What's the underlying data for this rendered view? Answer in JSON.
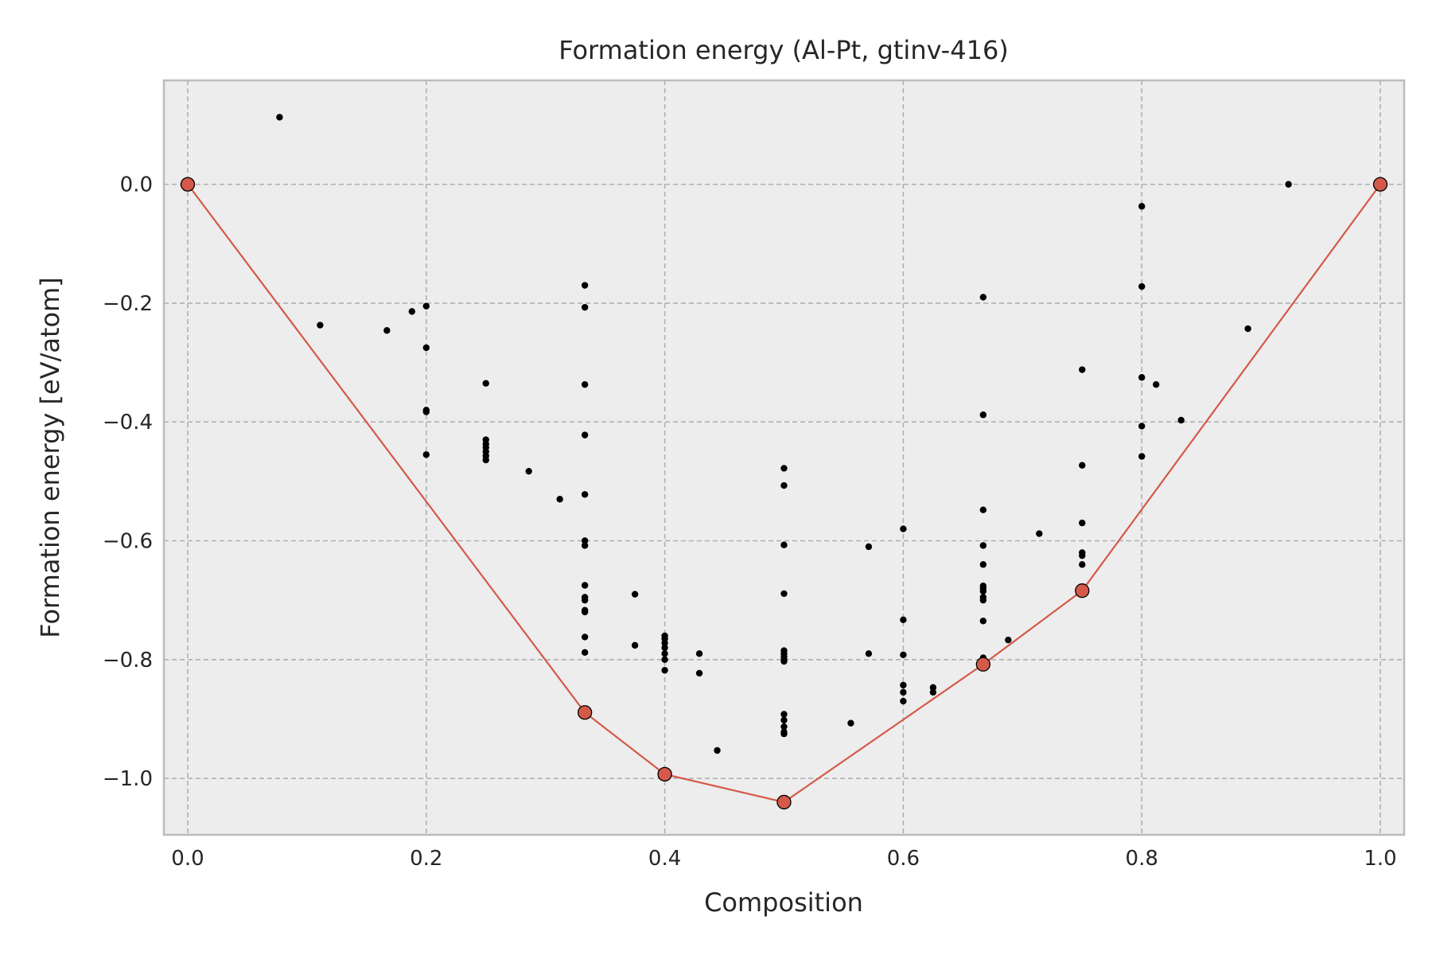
{
  "chart_data": {
    "type": "scatter",
    "title": "Formation energy (Al-Pt, gtinv-416)",
    "xlabel": "Composition",
    "ylabel": "Formation energy [eV/atom]",
    "xlim": [
      -0.02,
      1.02
    ],
    "ylim": [
      -1.095,
      0.175
    ],
    "xticks": [
      0.0,
      0.2,
      0.4,
      0.6,
      0.8,
      1.0
    ],
    "xtick_labels": [
      "0.0",
      "0.2",
      "0.4",
      "0.6",
      "0.8",
      "1.0"
    ],
    "yticks": [
      0.0,
      -0.2,
      -0.4,
      -0.6,
      -0.8,
      -1.0
    ],
    "ytick_labels": [
      "0.0",
      "−0.2",
      "−0.4",
      "−0.6",
      "−0.8",
      "−1.0"
    ],
    "grid": true,
    "colors": {
      "background": "#ededed",
      "grid": "#b0b0b0",
      "frame": "#bcbcbc",
      "hull": "#d4594a",
      "points": "#000000",
      "text": "#262626"
    },
    "series": [
      {
        "name": "structures",
        "marker": "small-dot",
        "points": [
          [
            0.077,
            0.113
          ],
          [
            0.111,
            -0.237
          ],
          [
            0.167,
            -0.246
          ],
          [
            0.188,
            -0.214
          ],
          [
            0.2,
            -0.205
          ],
          [
            0.2,
            -0.275
          ],
          [
            0.2,
            -0.38
          ],
          [
            0.2,
            -0.383
          ],
          [
            0.2,
            -0.455
          ],
          [
            0.25,
            -0.335
          ],
          [
            0.25,
            -0.43
          ],
          [
            0.25,
            -0.437
          ],
          [
            0.25,
            -0.443
          ],
          [
            0.25,
            -0.45
          ],
          [
            0.25,
            -0.457
          ],
          [
            0.25,
            -0.464
          ],
          [
            0.286,
            -0.483
          ],
          [
            0.312,
            -0.53
          ],
          [
            0.333,
            -0.17
          ],
          [
            0.333,
            -0.207
          ],
          [
            0.333,
            -0.337
          ],
          [
            0.333,
            -0.422
          ],
          [
            0.333,
            -0.522
          ],
          [
            0.333,
            -0.6
          ],
          [
            0.333,
            -0.608
          ],
          [
            0.333,
            -0.675
          ],
          [
            0.333,
            -0.695
          ],
          [
            0.333,
            -0.7
          ],
          [
            0.333,
            -0.717
          ],
          [
            0.333,
            -0.72
          ],
          [
            0.333,
            -0.762
          ],
          [
            0.333,
            -0.788
          ],
          [
            0.375,
            -0.69
          ],
          [
            0.375,
            -0.776
          ],
          [
            0.4,
            -0.76
          ],
          [
            0.4,
            -0.765
          ],
          [
            0.4,
            -0.772
          ],
          [
            0.4,
            -0.78
          ],
          [
            0.4,
            -0.79
          ],
          [
            0.4,
            -0.8
          ],
          [
            0.4,
            -0.818
          ],
          [
            0.429,
            -0.79
          ],
          [
            0.429,
            -0.823
          ],
          [
            0.444,
            -0.953
          ],
          [
            0.5,
            -0.478
          ],
          [
            0.5,
            -0.507
          ],
          [
            0.5,
            -0.607
          ],
          [
            0.5,
            -0.689
          ],
          [
            0.5,
            -0.785
          ],
          [
            0.5,
            -0.79
          ],
          [
            0.5,
            -0.795
          ],
          [
            0.5,
            -0.8
          ],
          [
            0.5,
            -0.803
          ],
          [
            0.5,
            -0.892
          ],
          [
            0.5,
            -0.902
          ],
          [
            0.5,
            -0.913
          ],
          [
            0.5,
            -0.922
          ],
          [
            0.5,
            -0.925
          ],
          [
            0.556,
            -0.907
          ],
          [
            0.571,
            -0.61
          ],
          [
            0.571,
            -0.79
          ],
          [
            0.6,
            -0.58
          ],
          [
            0.6,
            -0.733
          ],
          [
            0.6,
            -0.792
          ],
          [
            0.6,
            -0.843
          ],
          [
            0.6,
            -0.855
          ],
          [
            0.6,
            -0.87
          ],
          [
            0.625,
            -0.847
          ],
          [
            0.625,
            -0.855
          ],
          [
            0.667,
            -0.19
          ],
          [
            0.667,
            -0.388
          ],
          [
            0.667,
            -0.548
          ],
          [
            0.667,
            -0.608
          ],
          [
            0.667,
            -0.64
          ],
          [
            0.667,
            -0.676
          ],
          [
            0.667,
            -0.68
          ],
          [
            0.667,
            -0.685
          ],
          [
            0.667,
            -0.695
          ],
          [
            0.667,
            -0.7
          ],
          [
            0.667,
            -0.735
          ],
          [
            0.667,
            -0.797
          ],
          [
            0.688,
            -0.767
          ],
          [
            0.714,
            -0.588
          ],
          [
            0.75,
            -0.312
          ],
          [
            0.75,
            -0.473
          ],
          [
            0.75,
            -0.57
          ],
          [
            0.75,
            -0.62
          ],
          [
            0.75,
            -0.625
          ],
          [
            0.75,
            -0.64
          ],
          [
            0.8,
            -0.037
          ],
          [
            0.8,
            -0.172
          ],
          [
            0.8,
            -0.325
          ],
          [
            0.8,
            -0.407
          ],
          [
            0.8,
            -0.458
          ],
          [
            0.812,
            -0.337
          ],
          [
            0.833,
            -0.397
          ],
          [
            0.889,
            -0.243
          ],
          [
            0.923,
            0.0
          ]
        ]
      },
      {
        "name": "convex hull",
        "marker": "circle",
        "line": true,
        "points": [
          [
            0.0,
            0.0
          ],
          [
            0.333,
            -0.889
          ],
          [
            0.4,
            -0.993
          ],
          [
            0.5,
            -1.04
          ],
          [
            0.667,
            -0.808
          ],
          [
            0.75,
            -0.684
          ],
          [
            1.0,
            0.0
          ]
        ]
      }
    ]
  }
}
